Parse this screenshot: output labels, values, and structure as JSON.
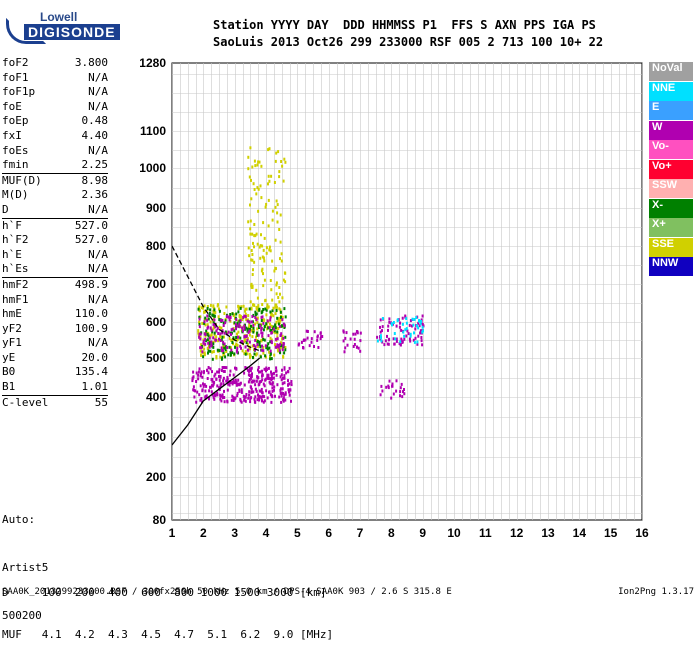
{
  "logo": {
    "line1": "Lowell",
    "line2": "DIGISONDE"
  },
  "header": {
    "line1": "Station YYYY DAY  DDD HHMMSS P1  FFS S AXN PPS IGA PS",
    "line2": "SaoLuis 2013 Oct26 299 233000 RSF 005 2 713 100 10+ 22"
  },
  "params": [
    {
      "label": "foF2",
      "value": "3.800"
    },
    {
      "label": "foF1",
      "value": "N/A"
    },
    {
      "label": "foF1p",
      "value": "N/A"
    },
    {
      "label": "foE",
      "value": "N/A"
    },
    {
      "label": "foEp",
      "value": "0.48"
    },
    {
      "label": "fxI",
      "value": "4.40"
    },
    {
      "label": "foEs",
      "value": "N/A"
    },
    {
      "label": "fmin",
      "value": "2.25"
    },
    {
      "label": "MUF(D)",
      "value": "8.98"
    },
    {
      "label": "M(D)",
      "value": "2.36"
    },
    {
      "label": "D",
      "value": "N/A"
    },
    {
      "label": "h`F",
      "value": "527.0"
    },
    {
      "label": "h`F2",
      "value": "527.0"
    },
    {
      "label": "h`E",
      "value": "N/A"
    },
    {
      "label": "h`Es",
      "value": "N/A"
    },
    {
      "label": "hmF2",
      "value": "498.9"
    },
    {
      "label": "hmF1",
      "value": "N/A"
    },
    {
      "label": "hmE",
      "value": "110.0"
    },
    {
      "label": "yF2",
      "value": "100.9"
    },
    {
      "label": "yF1",
      "value": "N/A"
    },
    {
      "label": "yE",
      "value": "20.0"
    },
    {
      "label": "B0",
      "value": "135.4"
    },
    {
      "label": "B1",
      "value": "1.01"
    },
    {
      "label": "C-level",
      "value": "55"
    }
  ],
  "auto": {
    "line1": "Auto:",
    "line2": "Artist5",
    "line3": "500200"
  },
  "muf_table": {
    "d_row": "D     100  200  400  600  800 1000 1500 3000 [km]",
    "muf_row": "MUF   4.1  4.2  4.3  4.5  4.7  5.1  6.2  9.0 [MHz]"
  },
  "footer": {
    "left": "SAA0K_2013299233000.RSF / 300fx256h 50 kHz 5.0 km / DPS-4 SAA0K 903 / 2.6 S 315.8 E",
    "right": "Ion2Png 1.3.17"
  },
  "legend": [
    {
      "label": "NoVal",
      "color": "#a0a0a0"
    },
    {
      "label": "NNE",
      "color": "#00e0ff"
    },
    {
      "label": "E",
      "color": "#3aa0ff"
    },
    {
      "label": "W",
      "color": "#b000b0"
    },
    {
      "label": "Vo-",
      "color": "#ff50c0"
    },
    {
      "label": "Vo+",
      "color": "#ff0030"
    },
    {
      "label": "SSW",
      "color": "#ffb0b0"
    },
    {
      "label": "X-",
      "color": "#008000"
    },
    {
      "label": "X+",
      "color": "#80c060"
    },
    {
      "label": "SSE",
      "color": "#d0d000"
    },
    {
      "label": "NNW",
      "color": "#1000c0"
    }
  ],
  "chart_data": {
    "type": "scatter",
    "title": "",
    "xlabel": "",
    "ylabel": "",
    "xlim": [
      1,
      16
    ],
    "ylim": [
      80,
      1280
    ],
    "x_ticks": [
      "1",
      "2",
      "3",
      "4",
      "5",
      "6",
      "7",
      "8",
      "9",
      "10",
      "11",
      "12",
      "13",
      "14",
      "15",
      "16"
    ],
    "y_ticks": [
      "80",
      "200",
      "300",
      "400",
      "500",
      "600",
      "700",
      "800",
      "900",
      "1000",
      "1100",
      "1280"
    ],
    "y_tick_values": [
      80,
      200,
      300,
      400,
      500,
      600,
      700,
      800,
      900,
      1000,
      1100,
      1280
    ],
    "grid": true,
    "x_scale": "linear",
    "y_scale": "log-like (ionogram virtual height)",
    "clusters": [
      {
        "x": [
          1.6,
          4.8
        ],
        "y": [
          390,
          480
        ],
        "color": "#b000b0",
        "density": 0.85
      },
      {
        "x": [
          1.8,
          4.6
        ],
        "y": [
          500,
          650
        ],
        "color": "#d0d000",
        "density": 0.55
      },
      {
        "x": [
          1.8,
          4.6
        ],
        "y": [
          500,
          640
        ],
        "color": "#008000",
        "density": 0.35
      },
      {
        "x": [
          1.8,
          4.6
        ],
        "y": [
          520,
          620
        ],
        "color": "#b000b0",
        "density": 0.45
      },
      {
        "x": [
          3.4,
          4.6
        ],
        "y": [
          640,
          1060
        ],
        "color": "#d0d000",
        "density": 0.2
      },
      {
        "x": [
          5.0,
          5.8
        ],
        "y": [
          530,
          580
        ],
        "color": "#b000b0",
        "density": 0.5
      },
      {
        "x": [
          6.4,
          7.0
        ],
        "y": [
          520,
          580
        ],
        "color": "#b000b0",
        "density": 0.5
      },
      {
        "x": [
          7.5,
          9.0
        ],
        "y": [
          540,
          620
        ],
        "color": "#b000b0",
        "density": 0.5
      },
      {
        "x": [
          7.5,
          9.0
        ],
        "y": [
          540,
          620
        ],
        "color": "#00e0ff",
        "density": 0.25
      },
      {
        "x": [
          7.6,
          8.4
        ],
        "y": [
          400,
          450
        ],
        "color": "#b000b0",
        "density": 0.4
      }
    ],
    "lines": [
      {
        "name": "",
        "style": "solid",
        "x": [
          1.0,
          1.5,
          2.0,
          2.5,
          3.0,
          3.5,
          3.8
        ],
        "y": [
          280,
          330,
          390,
          420,
          450,
          480,
          500
        ]
      },
      {
        "name": "",
        "style": "dashed",
        "x": [
          1.0,
          1.5,
          2.0,
          2.5,
          3.0,
          3.5,
          3.8
        ],
        "y": [
          800,
          720,
          640,
          580,
          550,
          530,
          520
        ]
      }
    ]
  }
}
